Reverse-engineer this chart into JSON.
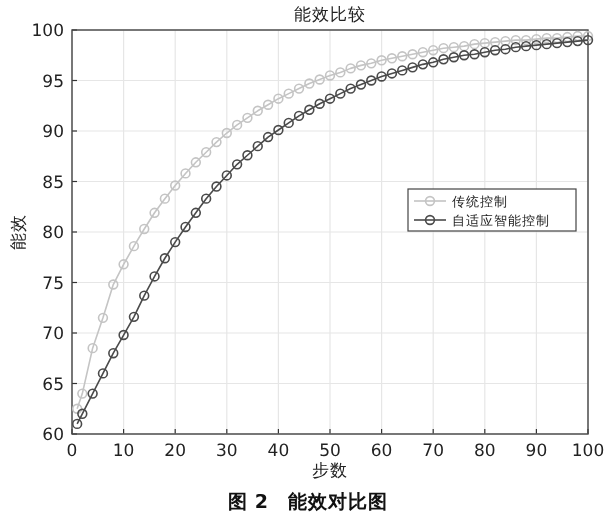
{
  "chart_data": {
    "type": "line",
    "title": "能效比较",
    "xlabel": "步数",
    "ylabel": "能效",
    "annotations": [
      "图 2　能效对比图"
    ],
    "x": [
      1,
      2,
      4,
      6,
      8,
      10,
      12,
      14,
      16,
      18,
      20,
      22,
      24,
      26,
      28,
      30,
      32,
      34,
      36,
      38,
      40,
      42,
      44,
      46,
      48,
      50,
      52,
      54,
      56,
      58,
      60,
      62,
      64,
      66,
      68,
      70,
      72,
      74,
      76,
      78,
      80,
      82,
      84,
      86,
      88,
      90,
      92,
      94,
      96,
      98,
      100
    ],
    "series": [
      {
        "name": "传统控制",
        "color": "#c4c4c4",
        "values": [
          62.5,
          64,
          68.5,
          71.5,
          74.8,
          76.8,
          78.6,
          80.3,
          81.9,
          83.3,
          84.6,
          85.8,
          86.9,
          87.9,
          88.9,
          89.8,
          90.6,
          91.3,
          92.0,
          92.6,
          93.2,
          93.7,
          94.2,
          94.7,
          95.1,
          95.5,
          95.8,
          96.2,
          96.5,
          96.7,
          97.0,
          97.2,
          97.4,
          97.6,
          97.8,
          98.0,
          98.2,
          98.3,
          98.4,
          98.6,
          98.7,
          98.8,
          98.9,
          99.0,
          99.0,
          99.1,
          99.2,
          99.2,
          99.3,
          99.4,
          99.4
        ]
      },
      {
        "name": "自适应智能控制",
        "color": "#4a4a4a",
        "values": [
          61,
          62,
          64,
          66,
          68,
          69.8,
          71.6,
          73.7,
          75.6,
          77.4,
          79.0,
          80.5,
          81.9,
          83.3,
          84.5,
          85.6,
          86.7,
          87.6,
          88.5,
          89.4,
          90.1,
          90.8,
          91.5,
          92.1,
          92.7,
          93.2,
          93.7,
          94.2,
          94.6,
          95.0,
          95.4,
          95.7,
          96.0,
          96.3,
          96.6,
          96.8,
          97.1,
          97.3,
          97.5,
          97.6,
          97.8,
          98.0,
          98.1,
          98.3,
          98.4,
          98.5,
          98.6,
          98.7,
          98.8,
          98.9,
          99.0
        ]
      }
    ],
    "xlim": [
      0,
      100
    ],
    "xticks": [
      0,
      10,
      20,
      30,
      40,
      50,
      60,
      70,
      80,
      90,
      100
    ],
    "ylim": [
      60,
      100
    ],
    "yticks": [
      60,
      65,
      70,
      75,
      80,
      85,
      90,
      95,
      100
    ],
    "grid": true,
    "legend": "right",
    "marker": "circle",
    "line_style": "solid"
  }
}
